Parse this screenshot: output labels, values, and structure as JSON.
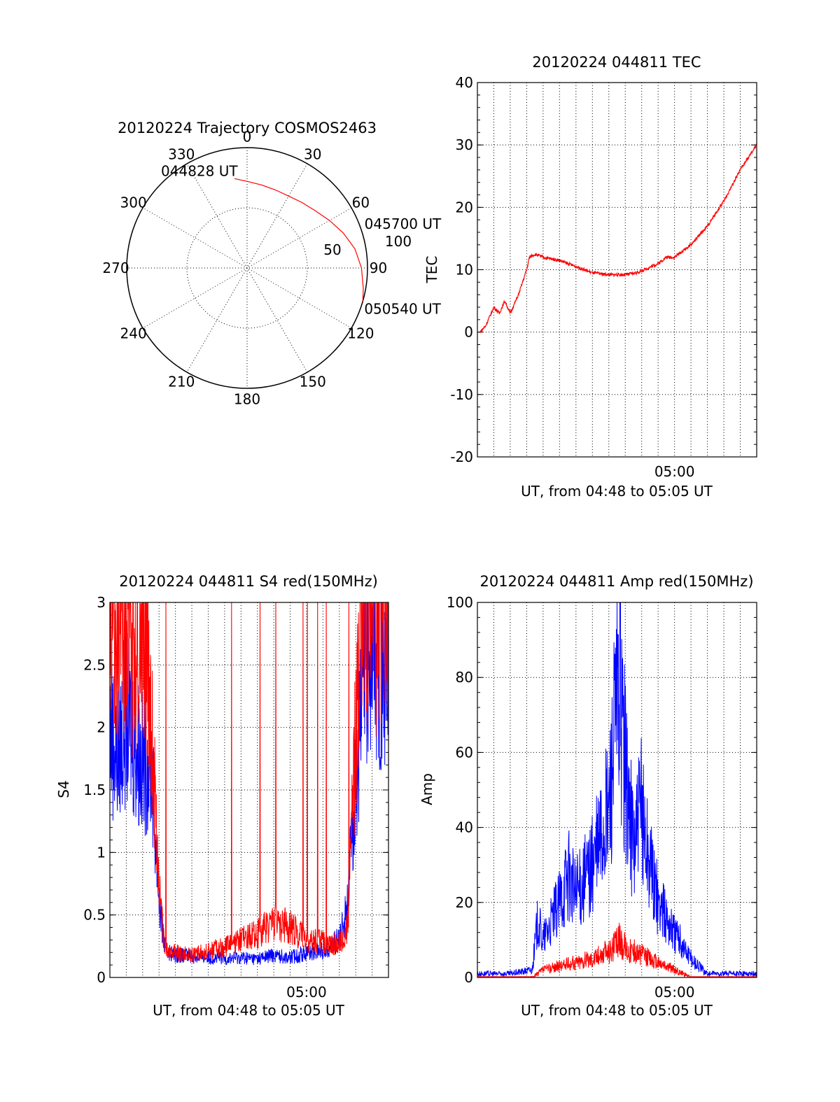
{
  "chart_data": [
    {
      "type": "polar",
      "title": "20120224 Trajectory COSMOS2463",
      "azimuth_labels": [
        "0",
        "30",
        "60",
        "90",
        "120",
        "150",
        "180",
        "210",
        "240",
        "270",
        "300",
        "330"
      ],
      "radial_labels": [
        "50",
        "100"
      ],
      "rlim": [
        0,
        100
      ],
      "grid": true,
      "series": [
        {
          "color": "#ff0000",
          "points": [
            {
              "az": 352,
              "r": 75
            },
            {
              "az": 0,
              "r": 72
            },
            {
              "az": 10,
              "r": 70
            },
            {
              "az": 20,
              "r": 69
            },
            {
              "az": 30,
              "r": 69
            },
            {
              "az": 40,
              "r": 71
            },
            {
              "az": 50,
              "r": 74
            },
            {
              "az": 60,
              "r": 79
            },
            {
              "az": 70,
              "r": 85
            },
            {
              "az": 80,
              "r": 91
            },
            {
              "az": 90,
              "r": 95
            },
            {
              "az": 100,
              "r": 98
            },
            {
              "az": 106,
              "r": 100
            }
          ]
        }
      ],
      "annotations": [
        {
          "text": "044828 UT",
          "az": 352,
          "r": 75
        },
        {
          "text": "045700 UT",
          "az": 60,
          "r": 79
        },
        {
          "text": "050540 UT",
          "az": 106,
          "r": 100
        }
      ]
    },
    {
      "type": "line",
      "title": "20120224 044811 TEC",
      "xlabel": "UT, from 04:48 to 05:05 UT",
      "ylabel": "TEC",
      "xlim": [
        "04:48:00",
        "05:05:00"
      ],
      "ylim": [
        -20,
        40
      ],
      "yticks": [
        -20,
        -10,
        0,
        10,
        20,
        30,
        40
      ],
      "xtick_labels": [
        "05:00"
      ],
      "grid": true,
      "series": [
        {
          "color": "#ff0000",
          "x": [
            "04:48:10",
            "04:48:30",
            "04:49:00",
            "04:49:20",
            "04:49:40",
            "04:50:00",
            "04:50:30",
            "04:51:00",
            "04:51:10",
            "04:51:30",
            "04:52:00",
            "04:53:00",
            "04:54:00",
            "04:55:00",
            "04:56:00",
            "04:57:00",
            "04:57:40",
            "04:58:00",
            "04:59:00",
            "04:59:30",
            "05:00:00",
            "05:01:00",
            "05:02:00",
            "05:03:00",
            "05:04:00",
            "05:05:00"
          ],
          "y": [
            0,
            1,
            4,
            3,
            5,
            3,
            6,
            10,
            12,
            12.5,
            12,
            11.5,
            10.5,
            9.5,
            9.2,
            9.2,
            9.5,
            9.8,
            11,
            12,
            12,
            14,
            17,
            21,
            26,
            30
          ]
        }
      ]
    },
    {
      "type": "line",
      "title": "20120224 044811 S4 red(150MHz)",
      "xlabel": "UT, from 04:48 to 05:05 UT",
      "ylabel": "S4",
      "xlim": [
        "04:48:00",
        "05:05:00"
      ],
      "ylim": [
        0,
        3
      ],
      "yticks": [
        0,
        0.5,
        1,
        1.5,
        2,
        2.5,
        3
      ],
      "xtick_labels": [
        "05:00"
      ],
      "grid": true,
      "series": [
        {
          "color": "#0000ff",
          "x": [
            "04:48:00",
            "04:48:30",
            "04:49:00",
            "04:49:30",
            "04:50:00",
            "04:50:30",
            "04:51:00",
            "04:51:20",
            "04:51:40",
            "04:52:00",
            "04:53:00",
            "04:54:00",
            "04:55:00",
            "04:56:00",
            "04:57:00",
            "04:58:00",
            "04:59:00",
            "05:00:00",
            "05:01:00",
            "05:02:00",
            "05:02:30",
            "05:03:00",
            "05:03:30",
            "05:04:00",
            "05:05:00"
          ],
          "y": [
            2.0,
            1.8,
            2.1,
            1.9,
            1.7,
            1.8,
            0.6,
            0.25,
            0.2,
            0.18,
            0.17,
            0.16,
            0.15,
            0.16,
            0.15,
            0.18,
            0.16,
            0.2,
            0.22,
            0.3,
            0.6,
            1.5,
            2.4,
            2.6,
            2.5
          ]
        },
        {
          "color": "#ff0000",
          "x": [
            "04:48:00",
            "04:48:30",
            "04:49:00",
            "04:49:30",
            "04:50:00",
            "04:50:30",
            "04:51:00",
            "04:51:20",
            "04:51:40",
            "04:52:00",
            "04:53:00",
            "04:54:00",
            "04:55:00",
            "04:56:00",
            "04:57:00",
            "04:58:00",
            "04:59:00",
            "05:00:00",
            "05:01:00",
            "05:02:00",
            "05:02:30",
            "05:03:00",
            "05:03:30",
            "05:04:00",
            "05:05:00"
          ],
          "y": [
            2.6,
            2.8,
            3.0,
            2.5,
            3.0,
            2.2,
            0.7,
            0.24,
            0.2,
            0.2,
            0.18,
            0.22,
            0.24,
            0.3,
            0.35,
            0.45,
            0.4,
            0.3,
            0.28,
            0.26,
            0.4,
            2.0,
            3.0,
            2.9,
            3.0
          ]
        }
      ]
    },
    {
      "type": "line",
      "title": "20120224 044811 Amp red(150MHz)",
      "xlabel": "UT, from 04:48 to 05:05 UT",
      "ylabel": "Amp",
      "xlim": [
        "04:48:00",
        "05:05:00"
      ],
      "ylim": [
        0,
        100
      ],
      "yticks": [
        0,
        20,
        40,
        60,
        80,
        100
      ],
      "xtick_labels": [
        "05:00"
      ],
      "grid": true,
      "series": [
        {
          "color": "#0000ff",
          "x": [
            "04:48:00",
            "04:50:00",
            "04:51:20",
            "04:51:40",
            "04:52:00",
            "04:53:00",
            "04:53:30",
            "04:54:00",
            "04:55:00",
            "04:56:00",
            "04:56:20",
            "04:56:40",
            "04:57:00",
            "04:57:30",
            "04:58:00",
            "04:58:30",
            "04:59:00",
            "05:00:00",
            "05:01:00",
            "05:02:00",
            "05:03:00",
            "05:05:00"
          ],
          "y": [
            1,
            1,
            2,
            15,
            10,
            20,
            28,
            22,
            30,
            45,
            65,
            78,
            55,
            35,
            45,
            30,
            20,
            12,
            5,
            1,
            1,
            1
          ]
        },
        {
          "color": "#ff0000",
          "x": [
            "04:48:00",
            "04:51:20",
            "04:52:00",
            "04:53:00",
            "04:54:00",
            "04:55:00",
            "04:56:00",
            "04:56:40",
            "04:57:00",
            "04:58:00",
            "04:59:00",
            "05:00:00",
            "05:01:00",
            "05:05:00"
          ],
          "y": [
            0,
            0,
            2,
            3,
            4,
            5,
            7,
            10,
            8,
            6,
            4,
            2,
            0,
            0
          ]
        }
      ]
    }
  ]
}
